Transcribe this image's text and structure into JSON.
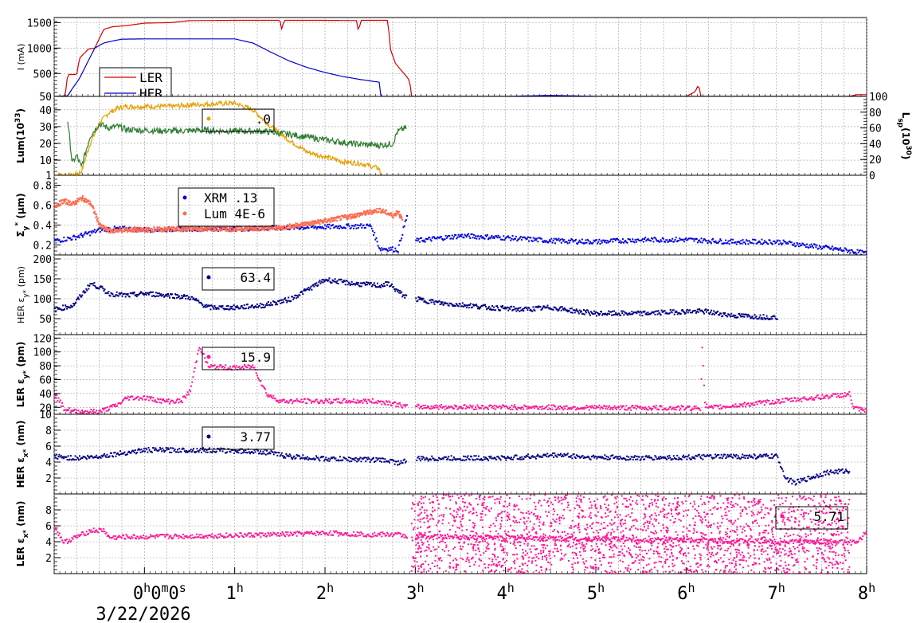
{
  "chart_data": {
    "type": "line",
    "x_axis": {
      "ticks": [
        {
          "hours": 0,
          "label": "0",
          "sup": "h",
          "extra": [
            "0",
            "m",
            "0",
            "s"
          ]
        },
        {
          "hours": 1,
          "label": "1",
          "sup": "h"
        },
        {
          "hours": 2,
          "label": "2",
          "sup": "h"
        },
        {
          "hours": 3,
          "label": "3",
          "sup": "h"
        },
        {
          "hours": 4,
          "label": "4",
          "sup": "h"
        },
        {
          "hours": 5,
          "label": "5",
          "sup": "h"
        },
        {
          "hours": 6,
          "label": "6",
          "sup": "h"
        },
        {
          "hours": 7,
          "label": "7",
          "sup": "h"
        },
        {
          "hours": 8,
          "label": "8",
          "sup": "h"
        }
      ],
      "range_hours": [
        -1.0,
        8.0
      ],
      "date": "3/22/2026"
    },
    "panels": [
      {
        "id": "current",
        "ylabel": "I (mA)",
        "ylim": [
          50,
          1600
        ],
        "yticks": [
          50,
          500,
          1000,
          1500
        ],
        "legend": [
          {
            "name": "LER",
            "color": "#d40000"
          },
          {
            "name": "HER",
            "color": "#0000cc"
          }
        ],
        "series": [
          {
            "name": "LER",
            "color": "#d40000",
            "x": [
              -1.0,
              -0.88,
              -0.85,
              -0.75,
              -0.72,
              -0.62,
              -0.55,
              -0.45,
              -0.35,
              -0.2,
              0.0,
              0.3,
              0.5,
              1.0,
              1.5,
              1.52,
              1.55,
              2.0,
              2.35,
              2.37,
              2.4,
              2.7,
              2.72,
              2.78,
              2.85,
              2.9,
              2.94,
              2.95,
              3.5,
              4.0,
              4.3,
              4.5,
              5.0,
              5.5,
              6.0,
              6.1,
              6.14,
              6.16,
              6.2,
              7.0,
              7.5,
              7.8,
              7.9,
              8.0
            ],
            "y": [
              50,
              50,
              480,
              480,
              800,
              980,
              1000,
              1370,
              1420,
              1440,
              1490,
              1500,
              1540,
              1545,
              1545,
              1380,
              1545,
              1545,
              1540,
              1330,
              1545,
              1545,
              1000,
              700,
              550,
              450,
              350,
              50,
              50,
              50,
              50,
              65,
              50,
              50,
              50,
              140,
              290,
              50,
              50,
              50,
              50,
              50,
              85,
              85
            ]
          },
          {
            "name": "HER",
            "color": "#0000cc",
            "x": [
              -1.0,
              -0.85,
              -0.8,
              -0.72,
              -0.65,
              -0.55,
              -0.45,
              -0.35,
              -0.25,
              0.0,
              0.5,
              1.0,
              1.2,
              1.4,
              1.6,
              1.8,
              2.0,
              2.2,
              2.4,
              2.6,
              2.62,
              2.7,
              3.0,
              4.0,
              4.5,
              5.0,
              6.0,
              7.0,
              7.5,
              7.8,
              8.0
            ],
            "y": [
              50,
              60,
              200,
              400,
              650,
              1000,
              1100,
              1140,
              1175,
              1180,
              1180,
              1180,
              1100,
              920,
              750,
              620,
              520,
              440,
              380,
              330,
              50,
              50,
              50,
              50,
              70,
              50,
              50,
              50,
              50,
              50,
              50
            ]
          }
        ]
      },
      {
        "id": "luminosity",
        "ylabel": "Lum(10",
        "ylabel_sup": "33",
        "ylabel_tail": ")",
        "ylim": [
          1,
          48
        ],
        "yticks": [
          1,
          10,
          20,
          30,
          40
        ],
        "y2label": "L",
        "y2label_sub": "sp",
        "y2label_mid": "(10",
        "y2label_sup": "30",
        "y2label_tail": ")",
        "y2lim": [
          0,
          100
        ],
        "y2ticks": [
          0,
          20,
          40,
          60,
          80,
          100
        ],
        "legend": [
          {
            "name": "",
            "value": ".0",
            "color": "#e6a000"
          }
        ],
        "series": [
          {
            "name": "lum",
            "color": "#e6a000",
            "x": [
              -1.0,
              -0.9,
              -0.8,
              -0.7,
              -0.6,
              -0.5,
              -0.4,
              -0.3,
              -0.2,
              0.0,
              0.3,
              0.5,
              1.0,
              1.2,
              1.4,
              1.6,
              1.8,
              2.0,
              2.2,
              2.4,
              2.6,
              2.62
            ],
            "y": [
              1,
              1,
              1,
              3,
              20,
              32,
              38,
              41,
              42,
              42,
              42,
              43,
              44,
              40,
              30,
              22,
              15,
              12,
              9,
              8,
              5,
              1
            ]
          },
          {
            "name": "specific",
            "color": "#2e7d32",
            "x": [
              -0.85,
              -0.8,
              -0.75,
              -0.7,
              -0.6,
              -0.5,
              -0.4,
              -0.3,
              -0.2,
              0.0,
              0.3,
              0.6,
              1.0,
              1.3,
              1.6,
              2.0,
              2.3,
              2.6,
              2.75,
              2.8,
              2.85,
              2.9
            ],
            "y2": [
              70,
              15,
              25,
              10,
              50,
              65,
              60,
              62,
              58,
              57,
              56,
              57,
              56,
              56,
              52,
              45,
              40,
              38,
              40,
              55,
              58,
              60
            ]
          }
        ]
      },
      {
        "id": "sigma_y",
        "ylabel": "Σ",
        "ylabel_sub": "y",
        "ylabel_sup": "*",
        "ylabel_tail": " (μm)",
        "ylim": [
          0.1,
          0.9
        ],
        "yticks": [
          0.2,
          0.4,
          0.6,
          0.8
        ],
        "legend": [
          {
            "name": "XRM",
            "value": ".13",
            "color": "#0000dd"
          },
          {
            "name": "Lum",
            "value": "4E-6",
            "color": "#ff6a4d"
          }
        ],
        "series": [
          {
            "name": "XRM",
            "color": "#0000dd",
            "x": [
              -1.0,
              -0.8,
              -0.6,
              -0.5,
              -0.4,
              -0.2,
              0.0,
              0.5,
              1.0,
              1.5,
              2.0,
              2.5,
              2.6,
              2.7,
              2.8,
              2.9,
              3.0,
              3.5,
              4.0,
              4.5,
              5.0,
              5.5,
              6.0,
              6.5,
              7.0,
              7.8,
              8.0
            ],
            "y": [
              0.25,
              0.28,
              0.33,
              0.36,
              0.37,
              0.37,
              0.36,
              0.37,
              0.37,
              0.38,
              0.39,
              0.4,
              0.17,
              0.17,
              0.16,
              0.5,
              0.25,
              0.3,
              0.28,
              0.25,
              0.24,
              0.26,
              0.26,
              0.24,
              0.24,
              0.15,
              0.12
            ]
          },
          {
            "name": "Lum",
            "color": "#ff6a4d",
            "x": [
              -1.0,
              -0.9,
              -0.8,
              -0.7,
              -0.6,
              -0.5,
              -0.4,
              -0.2,
              0.0,
              0.5,
              1.0,
              1.5,
              2.0,
              2.3,
              2.6,
              2.75,
              2.8,
              2.85
            ],
            "y": [
              0.6,
              0.65,
              0.62,
              0.68,
              0.62,
              0.4,
              0.35,
              0.36,
              0.36,
              0.37,
              0.37,
              0.38,
              0.45,
              0.5,
              0.56,
              0.5,
              0.55,
              0.45
            ]
          }
        ]
      },
      {
        "id": "her_ey",
        "ylabel": "HER ε",
        "ylabel_sub": "y*",
        "ylabel_tail": " (pm)",
        "ylim": [
          10,
          210
        ],
        "yticks": [
          50,
          100,
          150,
          200
        ],
        "legend": [
          {
            "name": "",
            "value": "63.4",
            "color": "#000080"
          }
        ],
        "series": [
          {
            "name": "HER ey",
            "color": "#000080",
            "x": [
              -1.0,
              -0.8,
              -0.6,
              -0.5,
              -0.4,
              -0.2,
              0.0,
              0.3,
              0.5,
              0.7,
              1.0,
              1.3,
              1.6,
              2.0,
              2.3,
              2.6,
              2.7,
              2.8,
              2.9,
              3.3,
              3.6,
              3.8,
              4.2,
              4.5,
              4.8,
              5.0,
              5.5,
              6.0,
              6.2,
              6.5,
              7.0
            ],
            "y": [
              75,
              85,
              140,
              130,
              115,
              110,
              115,
              110,
              105,
              80,
              80,
              85,
              100,
              150,
              140,
              135,
              140,
              120,
              105,
              90,
              85,
              80,
              75,
              80,
              70,
              65,
              65,
              70,
              70,
              60,
              55
            ]
          }
        ]
      },
      {
        "id": "ler_ey",
        "ylabel": "LER ε",
        "ylabel_sub": "y*",
        "ylabel_tail": " (pm)",
        "ylim": [
          10,
          125
        ],
        "yticks": [
          10,
          20,
          40,
          60,
          80,
          100,
          120
        ],
        "legend": [
          {
            "name": "",
            "value": "15.9",
            "color": "#ff1493"
          }
        ],
        "series": [
          {
            "name": "LER ey",
            "color": "#ff1493",
            "x": [
              -1.0,
              -0.9,
              -0.8,
              -0.7,
              -0.5,
              -0.3,
              -0.2,
              0.0,
              0.2,
              0.4,
              0.5,
              0.6,
              0.7,
              1.0,
              1.2,
              1.35,
              1.5,
              2.0,
              2.5,
              2.7,
              2.9,
              6.15,
              6.17,
              6.2,
              6.25,
              7.8,
              7.85,
              8.0
            ],
            "y": [
              40,
              20,
              15,
              15,
              15,
              25,
              35,
              35,
              30,
              30,
              45,
              110,
              80,
              78,
              80,
              40,
              30,
              30,
              30,
              28,
              22,
              20,
              110,
              25,
              20,
              40,
              20,
              15
            ]
          }
        ]
      },
      {
        "id": "her_ex",
        "ylabel": "HER ε",
        "ylabel_sub": "x*",
        "ylabel_tail": " (nm)",
        "ylim": [
          0,
          10
        ],
        "yticks": [
          2,
          4,
          6,
          8
        ],
        "legend": [
          {
            "name": "",
            "value": "3.77",
            "color": "#000080"
          }
        ],
        "series": [
          {
            "name": "HER ex",
            "color": "#000080",
            "x": [
              -1.0,
              -0.8,
              -0.6,
              -0.4,
              -0.2,
              0.0,
              0.3,
              0.6,
              1.0,
              1.3,
              1.6,
              2.0,
              2.5,
              2.7,
              2.8,
              3.0,
              3.5,
              4.0,
              4.3,
              4.6,
              4.9,
              5.0,
              5.5,
              6.0,
              6.5,
              7.0,
              7.1,
              7.2,
              7.55,
              7.8
            ],
            "y": [
              4.8,
              4.6,
              4.7,
              5.0,
              5.3,
              5.6,
              5.6,
              5.6,
              5.5,
              5.4,
              4.8,
              4.5,
              4.4,
              4.3,
              4.0,
              4.5,
              4.6,
              4.6,
              4.8,
              5.0,
              4.7,
              4.7,
              4.6,
              4.7,
              4.8,
              4.8,
              2.0,
              1.5,
              2.8,
              3.0
            ]
          }
        ]
      },
      {
        "id": "ler_ex",
        "ylabel": "LER ε",
        "ylabel_sub": "x*",
        "ylabel_tail": " (nm)",
        "ylim": [
          0,
          10
        ],
        "yticks": [
          2,
          4,
          6,
          8
        ],
        "legend": [
          {
            "name": "",
            "value": "5.71",
            "color": "#ff1493"
          }
        ],
        "series": [
          {
            "name": "LER ex",
            "color": "#ff1493",
            "x": [
              -1.0,
              -0.9,
              -0.8,
              -0.6,
              -0.45,
              -0.4,
              -0.2,
              0.0,
              0.5,
              1.0,
              1.5,
              2.0,
              2.5,
              2.8,
              2.9,
              7.8,
              7.9,
              8.0
            ],
            "y": [
              6.0,
              4.0,
              4.5,
              5.5,
              5.5,
              4.6,
              4.7,
              4.7,
              4.8,
              4.9,
              5.0,
              5.2,
              5.0,
              5.0,
              4.8,
              4.0,
              4.0,
              5.7
            ]
          }
        ]
      }
    ]
  }
}
